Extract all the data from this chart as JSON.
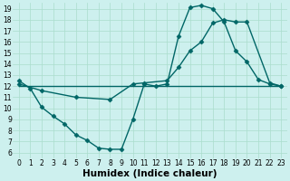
{
  "xlabel": "Humidex (Indice chaleur)",
  "bg_color": "#cdf0ee",
  "grid_color": "#aaddcc",
  "line_color": "#006666",
  "xlim": [
    -0.5,
    23.5
  ],
  "ylim": [
    5.5,
    19.5
  ],
  "xticks": [
    0,
    1,
    2,
    3,
    4,
    5,
    6,
    7,
    8,
    9,
    10,
    11,
    12,
    13,
    14,
    15,
    16,
    17,
    18,
    19,
    20,
    21,
    22,
    23
  ],
  "yticks": [
    6,
    7,
    8,
    9,
    10,
    11,
    12,
    13,
    14,
    15,
    16,
    17,
    18,
    19
  ],
  "line1_x": [
    0,
    1,
    2,
    3,
    4,
    5,
    6,
    7,
    8,
    9,
    10,
    11,
    12,
    13,
    14,
    15,
    16,
    17,
    18,
    19,
    20,
    21,
    22,
    23
  ],
  "line1_y": [
    12.5,
    11.8,
    10.1,
    9.3,
    8.6,
    7.6,
    7.1,
    6.4,
    6.3,
    6.3,
    9.0,
    12.2,
    12.0,
    12.2,
    16.5,
    19.1,
    19.3,
    19.0,
    17.8,
    15.2,
    14.2,
    12.6,
    12.2,
    12.0
  ],
  "line2_x": [
    0,
    2,
    5,
    8,
    10,
    11,
    13,
    14,
    15,
    16,
    17,
    18,
    19,
    20,
    22,
    23
  ],
  "line2_y": [
    12.2,
    11.6,
    11.0,
    10.8,
    12.2,
    12.3,
    12.5,
    13.7,
    15.2,
    16.0,
    17.7,
    18.0,
    17.8,
    17.8,
    12.3,
    12.0
  ],
  "line3_x": [
    0,
    23
  ],
  "line3_y": [
    12.0,
    12.0
  ],
  "marker": "D",
  "markersize": 2.5,
  "linewidth": 1.0,
  "fontsize_ticks": 5.5,
  "fontsize_xlabel": 7.5
}
